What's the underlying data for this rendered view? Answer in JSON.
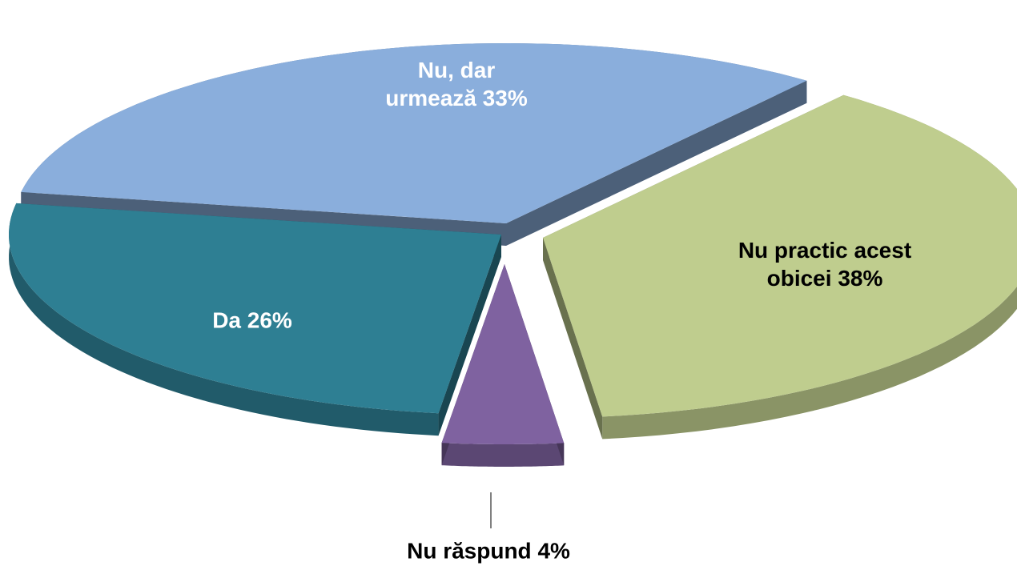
{
  "chart_data": {
    "type": "pie",
    "categories": [
      "Nu, dar urmează",
      "Nu practic acest obicei",
      "Nu răspund",
      "Da"
    ],
    "values": [
      33,
      38,
      4,
      26
    ],
    "value_labels": [
      "33%",
      "38%",
      "4%",
      "26%"
    ],
    "colors": [
      "#8aaedc",
      "#bfcd8e",
      "#7f62a0",
      "#2e7f93"
    ]
  }
}
